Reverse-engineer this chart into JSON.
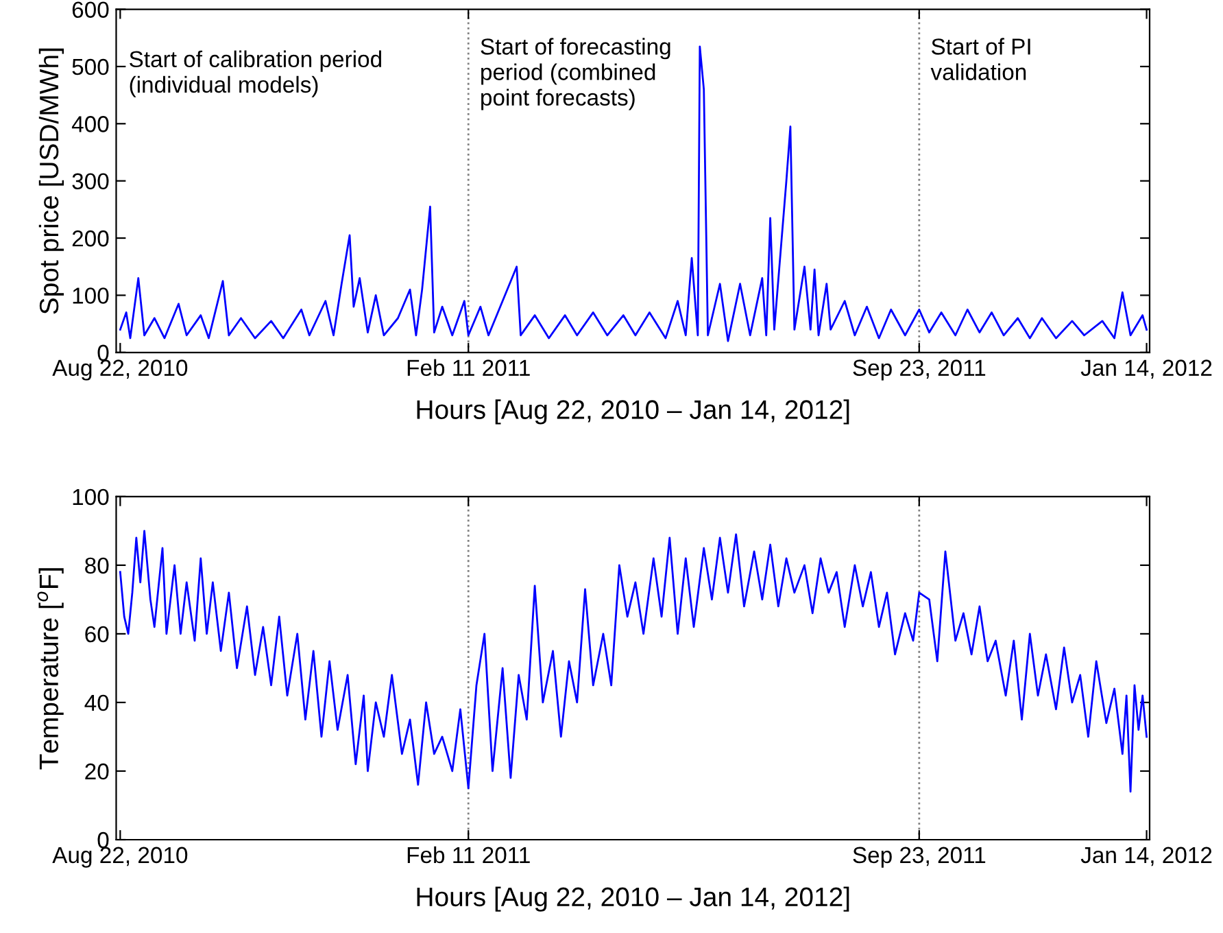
{
  "chart_data": [
    {
      "type": "line",
      "xlabel": "Hours [Aug 22, 2010 – Jan 14, 2012]",
      "ylabel": "Spot price [USD/MWh]",
      "xlim": [
        "2010-08-20",
        "2012-01-15T12:00"
      ],
      "xticks": [
        {
          "value": "2010-08-22",
          "label": "Aug 22, 2010"
        },
        {
          "value": "2011-02-11",
          "label": "Feb 11 2011"
        },
        {
          "value": "2011-09-23",
          "label": "Sep 23, 2011"
        },
        {
          "value": "2012-01-14",
          "label": "Jan 14, 2012"
        }
      ],
      "ylim": [
        0,
        600
      ],
      "yticks": [
        0,
        100,
        200,
        300,
        400,
        500,
        600
      ],
      "grid": false,
      "ref_lines": [
        {
          "axis": "x",
          "value": "2011-02-11",
          "line_style": "dotted",
          "color": "#808080"
        },
        {
          "axis": "x",
          "value": "2011-09-23",
          "line_style": "dotted",
          "color": "#808080"
        }
      ],
      "annotations": [
        "Start of calibration period\n(individual models)",
        {
          "text": "Start of forecasting\nperiod (combined\npoint forecasts)",
          "x": "2011-02-11",
          "y": 550
        },
        {
          "text": "Start of PI\nvalidation",
          "x": "2011-09-23",
          "y": 550
        }
      ],
      "series": [
        {
          "color": "#0000ff",
          "x": [
            "2010-08-22",
            "2010-08-25",
            "2010-08-27",
            "2010-08-31",
            "2010-09-03",
            "2010-09-08",
            "2010-09-13",
            "2010-09-20",
            "2010-09-24",
            "2010-10-01",
            "2010-10-05",
            "2010-10-12",
            "2010-10-15",
            "2010-10-21",
            "2010-10-28",
            "2010-11-05",
            "2010-11-11",
            "2010-11-20",
            "2010-11-24",
            "2010-12-02",
            "2010-12-06",
            "2010-12-10",
            "2010-12-14",
            "2010-12-16",
            "2010-12-19",
            "2010-12-23",
            "2010-12-27",
            "2010-12-31",
            "2011-01-07",
            "2011-01-13",
            "2011-01-16",
            "2011-01-19",
            "2011-01-23",
            "2011-01-25",
            "2011-01-29",
            "2011-02-03",
            "2011-02-09",
            "2011-02-11",
            "2011-02-17",
            "2011-02-21",
            "2011-03-07",
            "2011-03-09",
            "2011-03-16",
            "2011-03-23",
            "2011-03-31",
            "2011-04-06",
            "2011-04-14",
            "2011-04-21",
            "2011-04-29",
            "2011-05-05",
            "2011-05-12",
            "2011-05-20",
            "2011-05-26",
            "2011-05-30",
            "2011-06-02",
            "2011-06-05",
            "2011-06-06",
            "2011-06-08",
            "2011-06-10",
            "2011-06-16",
            "2011-06-20",
            "2011-06-26",
            "2011-07-01",
            "2011-07-07",
            "2011-07-09",
            "2011-07-11",
            "2011-07-13",
            "2011-07-19",
            "2011-07-21",
            "2011-07-23",
            "2011-07-28",
            "2011-07-31",
            "2011-08-02",
            "2011-08-04",
            "2011-08-08",
            "2011-08-10",
            "2011-08-17",
            "2011-08-22",
            "2011-08-28",
            "2011-09-03",
            "2011-09-09",
            "2011-09-16",
            "2011-09-23",
            "2011-09-28",
            "2011-10-04",
            "2011-10-11",
            "2011-10-17",
            "2011-10-23",
            "2011-10-29",
            "2011-11-04",
            "2011-11-11",
            "2011-11-17",
            "2011-11-23",
            "2011-11-30",
            "2011-12-08",
            "2011-12-14",
            "2011-12-23",
            "2011-12-29",
            "2012-01-02",
            "2012-01-06",
            "2012-01-12",
            "2012-01-14"
          ],
          "values": [
            40,
            70,
            25,
            130,
            30,
            60,
            25,
            85,
            30,
            65,
            25,
            125,
            30,
            60,
            25,
            55,
            25,
            75,
            30,
            90,
            30,
            120,
            205,
            80,
            130,
            35,
            100,
            30,
            60,
            110,
            30,
            110,
            255,
            35,
            80,
            30,
            90,
            30,
            80,
            30,
            150,
            30,
            65,
            25,
            65,
            30,
            70,
            30,
            65,
            30,
            70,
            25,
            90,
            30,
            165,
            30,
            535,
            460,
            30,
            120,
            20,
            120,
            30,
            130,
            30,
            235,
            40,
            300,
            395,
            40,
            150,
            40,
            145,
            30,
            120,
            40,
            90,
            30,
            80,
            25,
            75,
            30,
            75,
            35,
            70,
            30,
            75,
            35,
            70,
            30,
            60,
            25,
            60,
            25,
            55,
            30,
            55,
            25,
            105,
            30,
            65,
            40
          ]
        }
      ]
    },
    {
      "type": "line",
      "xlabel": "Hours [Aug 22, 2010 – Jan 14, 2012]",
      "ylabel": "Temperature [$^{o}$F]",
      "xlim": [
        "2010-08-20",
        "2012-01-15T12:00"
      ],
      "xticks": [
        {
          "value": "2010-08-22",
          "label": "Aug 22, 2010"
        },
        {
          "value": "2011-02-11",
          "label": "Feb 11 2011"
        },
        {
          "value": "2011-09-23",
          "label": "Sep 23, 2011"
        },
        {
          "value": "2012-01-14",
          "label": "Jan 14, 2012"
        }
      ],
      "ylim": [
        0,
        100
      ],
      "yticks": [
        0,
        20,
        40,
        60,
        80,
        100
      ],
      "grid": false,
      "ref_lines": [
        {
          "axis": "x",
          "value": "2011-02-11",
          "line_style": "dotted",
          "color": "#808080"
        },
        {
          "axis": "x",
          "value": "2011-09-23",
          "line_style": "dotted",
          "color": "#808080"
        }
      ],
      "series": [
        {
          "color": "#0000ff",
          "x": [
            "2010-08-22",
            "2010-08-24",
            "2010-08-26",
            "2010-08-28",
            "2010-08-30",
            "2010-09-01",
            "2010-09-03",
            "2010-09-06",
            "2010-09-08",
            "2010-09-12",
            "2010-09-14",
            "2010-09-18",
            "2010-09-21",
            "2010-09-24",
            "2010-09-28",
            "2010-10-01",
            "2010-10-04",
            "2010-10-07",
            "2010-10-11",
            "2010-10-15",
            "2010-10-19",
            "2010-10-24",
            "2010-10-28",
            "2010-11-01",
            "2010-11-05",
            "2010-11-09",
            "2010-11-13",
            "2010-11-18",
            "2010-11-22",
            "2010-11-26",
            "2010-11-30",
            "2010-12-04",
            "2010-12-08",
            "2010-12-13",
            "2010-12-17",
            "2010-12-21",
            "2010-12-23",
            "2010-12-27",
            "2010-12-31",
            "2011-01-04",
            "2011-01-09",
            "2011-01-13",
            "2011-01-17",
            "2011-01-21",
            "2011-01-25",
            "2011-01-29",
            "2011-02-03",
            "2011-02-07",
            "2011-02-11",
            "2011-02-15",
            "2011-02-19",
            "2011-02-23",
            "2011-02-28",
            "2011-03-04",
            "2011-03-08",
            "2011-03-12",
            "2011-03-16",
            "2011-03-20",
            "2011-03-25",
            "2011-03-29",
            "2011-04-02",
            "2011-04-06",
            "2011-04-10",
            "2011-04-14",
            "2011-04-19",
            "2011-04-23",
            "2011-04-27",
            "2011-05-01",
            "2011-05-05",
            "2011-05-09",
            "2011-05-14",
            "2011-05-18",
            "2011-05-22",
            "2011-05-26",
            "2011-05-30",
            "2011-06-03",
            "2011-06-08",
            "2011-06-12",
            "2011-06-16",
            "2011-06-20",
            "2011-06-24",
            "2011-06-28",
            "2011-07-03",
            "2011-07-07",
            "2011-07-11",
            "2011-07-15",
            "2011-07-19",
            "2011-07-23",
            "2011-07-28",
            "2011-08-01",
            "2011-08-05",
            "2011-08-09",
            "2011-08-13",
            "2011-08-17",
            "2011-08-22",
            "2011-08-26",
            "2011-08-30",
            "2011-09-03",
            "2011-09-07",
            "2011-09-11",
            "2011-09-16",
            "2011-09-20",
            "2011-09-23",
            "2011-09-28",
            "2011-10-02",
            "2011-10-06",
            "2011-10-11",
            "2011-10-15",
            "2011-10-19",
            "2011-10-23",
            "2011-10-27",
            "2011-10-31",
            "2011-11-05",
            "2011-11-09",
            "2011-11-13",
            "2011-11-17",
            "2011-11-21",
            "2011-11-25",
            "2011-11-30",
            "2011-12-04",
            "2011-12-08",
            "2011-12-12",
            "2011-12-16",
            "2011-12-20",
            "2011-12-25",
            "2011-12-29",
            "2012-01-02",
            "2012-01-04",
            "2012-01-06",
            "2012-01-08",
            "2012-01-10",
            "2012-01-12",
            "2012-01-14"
          ],
          "values": [
            78,
            65,
            60,
            72,
            88,
            75,
            90,
            70,
            62,
            85,
            60,
            80,
            60,
            75,
            58,
            82,
            60,
            75,
            55,
            72,
            50,
            68,
            48,
            62,
            45,
            65,
            42,
            60,
            35,
            55,
            30,
            52,
            32,
            48,
            22,
            42,
            20,
            40,
            30,
            48,
            25,
            35,
            16,
            40,
            25,
            30,
            20,
            38,
            15,
            45,
            60,
            20,
            50,
            18,
            48,
            35,
            74,
            40,
            55,
            30,
            52,
            40,
            73,
            45,
            60,
            45,
            80,
            65,
            75,
            60,
            82,
            65,
            88,
            60,
            82,
            62,
            85,
            70,
            88,
            72,
            89,
            68,
            84,
            70,
            86,
            68,
            82,
            72,
            80,
            66,
            82,
            72,
            78,
            62,
            80,
            68,
            78,
            62,
            72,
            54,
            66,
            58,
            72,
            70,
            52,
            84,
            58,
            66,
            54,
            68,
            52,
            58,
            42,
            58,
            35,
            60,
            42,
            54,
            38,
            56,
            40,
            48,
            30,
            52,
            34,
            44,
            25,
            42,
            14,
            45,
            32,
            42,
            30
          ]
        }
      ]
    }
  ]
}
